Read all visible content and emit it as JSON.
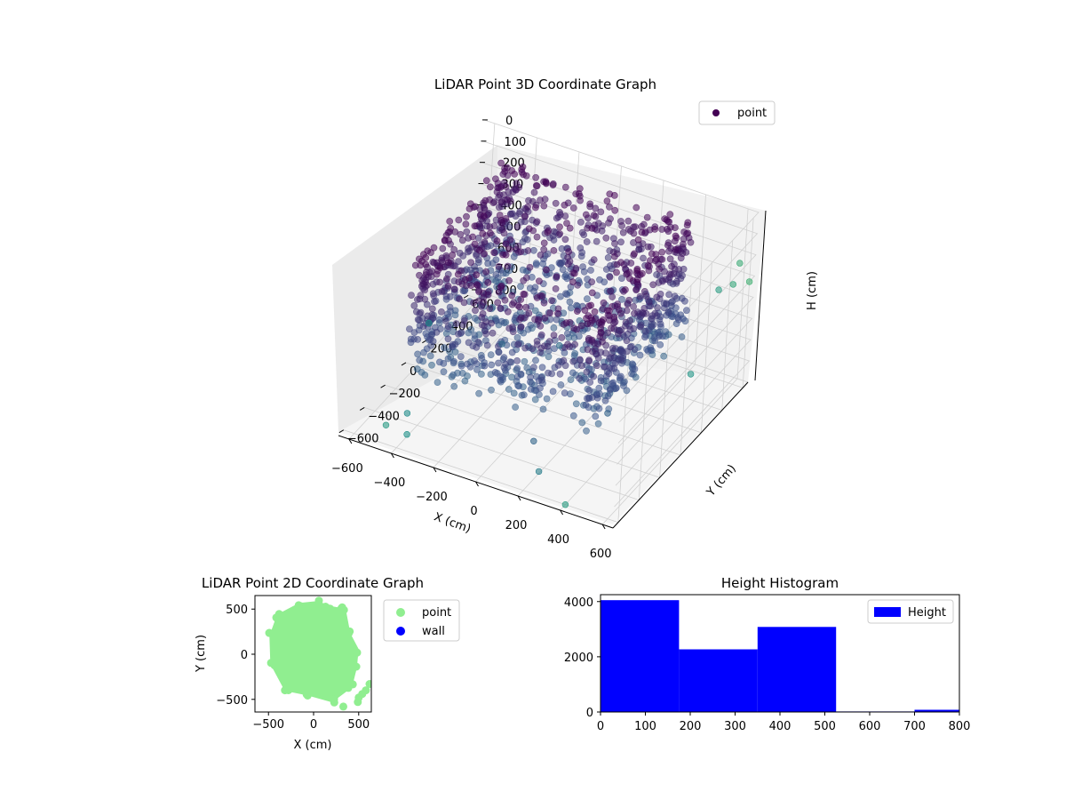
{
  "chart_data": [
    {
      "type": "scatter",
      "projection": "3d",
      "title": "LiDAR Point 3D Coordinate Graph",
      "xlabel": "X (cm)",
      "ylabel": "Y (cm)",
      "zlabel": "H (cm)",
      "xlim": [
        -650,
        650
      ],
      "ylim": [
        -650,
        650
      ],
      "zlim": [
        0,
        800
      ],
      "z_inverted": true,
      "x_ticks": [
        "−600",
        "−400",
        "−200",
        "0",
        "200",
        "400",
        "600"
      ],
      "y_ticks": [
        "−600",
        "−400",
        "−200",
        "0",
        "200",
        "400",
        "600"
      ],
      "z_ticks": [
        "0",
        "100",
        "200",
        "300",
        "400",
        "500",
        "600",
        "700",
        "800"
      ],
      "legend": {
        "position": "top-right",
        "entries": [
          {
            "label": "point",
            "color": "#440154"
          }
        ]
      },
      "colormap": "viridis",
      "grid": true,
      "cloud_region_cm": {
        "x": [
          -450,
          450
        ],
        "y": [
          -450,
          450
        ],
        "h": [
          0,
          600
        ]
      },
      "outliers": [
        {
          "x": -600,
          "y": 100,
          "h": 650
        },
        {
          "x": -500,
          "y": -500,
          "h": 780
        },
        {
          "x": -450,
          "y": -400,
          "h": 760
        },
        {
          "x": -400,
          "y": -500,
          "h": 790
        },
        {
          "x": -300,
          "y": 200,
          "h": 700
        },
        {
          "x": -100,
          "y": 350,
          "h": 720
        },
        {
          "x": 100,
          "y": -300,
          "h": 760
        },
        {
          "x": 300,
          "y": 0,
          "h": 720
        },
        {
          "x": 200,
          "y": -450,
          "h": 790
        },
        {
          "x": 400,
          "y": -600,
          "h": 800
        },
        {
          "x": 450,
          "y": 500,
          "h": 750
        },
        {
          "x": 600,
          "y": 400,
          "h": 250
        },
        {
          "x": 620,
          "y": 500,
          "h": 270
        },
        {
          "x": 600,
          "y": 600,
          "h": 230
        },
        {
          "x": 650,
          "y": 600,
          "h": 300
        }
      ]
    },
    {
      "type": "scatter",
      "title": "LiDAR Point 2D Coordinate Graph",
      "xlabel": "X (cm)",
      "ylabel": "Y (cm)",
      "xlim": [
        -650,
        640
      ],
      "ylim": [
        -640,
        650
      ],
      "x_ticks": [
        -500,
        0,
        500
      ],
      "y_ticks": [
        -500,
        0,
        500
      ],
      "legend": {
        "position": "outside-right",
        "entries": [
          {
            "label": "point",
            "color": "#90ee90"
          },
          {
            "label": "wall",
            "color": "#0000ff"
          }
        ]
      },
      "point_color": "#90ee90",
      "cloud_outline": [
        [
          -380,
          420
        ],
        [
          -150,
          540
        ],
        [
          50,
          560
        ],
        [
          150,
          510
        ],
        [
          330,
          480
        ],
        [
          380,
          220
        ],
        [
          470,
          50
        ],
        [
          450,
          -150
        ],
        [
          400,
          -350
        ],
        [
          200,
          -500
        ],
        [
          -50,
          -430
        ],
        [
          -300,
          -380
        ],
        [
          -450,
          -100
        ],
        [
          -460,
          200
        ]
      ],
      "extra_points": [
        {
          "x": 620,
          "y": -330
        },
        {
          "x": 580,
          "y": -400
        },
        {
          "x": 540,
          "y": -440
        },
        {
          "x": 500,
          "y": -480
        },
        {
          "x": 490,
          "y": -530
        },
        {
          "x": 330,
          "y": -580
        }
      ]
    },
    {
      "type": "bar",
      "subtype": "histogram",
      "title": "Height Histogram",
      "xlabel": "",
      "ylabel": "",
      "xlim": [
        0,
        800
      ],
      "ylim": [
        0,
        4250
      ],
      "x_ticks": [
        0,
        100,
        200,
        300,
        400,
        500,
        600,
        700,
        800
      ],
      "y_ticks": [
        0,
        2000,
        4000
      ],
      "bin_edges": [
        0,
        175,
        350,
        525,
        700,
        875
      ],
      "values": [
        4050,
        2270,
        3080,
        20,
        80
      ],
      "series": [
        {
          "name": "Height",
          "color": "#0000ff"
        }
      ],
      "legend": {
        "position": "top-right",
        "entries": [
          {
            "label": "Height",
            "color": "#0000ff"
          }
        ]
      }
    }
  ]
}
